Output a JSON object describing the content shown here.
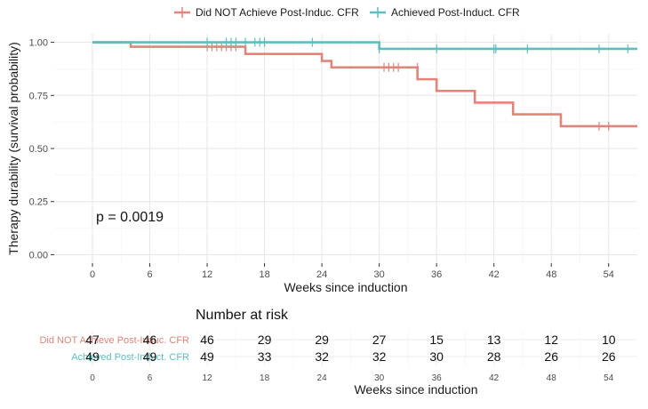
{
  "chart_data": {
    "type": "line",
    "subtype": "kaplan-meier step plot",
    "xlabel": "Weeks since induction",
    "ylabel": "Therapy durability (survival probability)",
    "x_ticks": [
      0,
      6,
      12,
      18,
      24,
      30,
      36,
      42,
      48,
      54
    ],
    "y_ticks": [
      "0.00",
      "0.25",
      "0.50",
      "0.75",
      "1.00"
    ],
    "xlim": [
      -4,
      57
    ],
    "ylim": [
      -0.04,
      1.04
    ],
    "grid": true,
    "legend_position": "top",
    "annotation": "p = 0.0019",
    "series": [
      {
        "name": "Did NOT Achieve Post-Induc. CFR",
        "color": "#E0857A",
        "steps": [
          [
            0,
            1.0
          ],
          [
            4,
            0.979
          ],
          [
            16,
            0.945
          ],
          [
            24,
            0.912
          ],
          [
            25,
            0.882
          ],
          [
            34,
            0.826
          ],
          [
            36,
            0.771
          ],
          [
            40,
            0.716
          ],
          [
            44,
            0.661
          ],
          [
            49,
            0.605
          ],
          [
            57,
            0.605
          ]
        ],
        "censored": [
          [
            12,
            0.979
          ],
          [
            12.5,
            0.979
          ],
          [
            13,
            0.979
          ],
          [
            13.5,
            0.979
          ],
          [
            14,
            0.979
          ],
          [
            14.5,
            0.979
          ],
          [
            15,
            0.979
          ],
          [
            30.5,
            0.882
          ],
          [
            31,
            0.882
          ],
          [
            31.5,
            0.882
          ],
          [
            32,
            0.882
          ],
          [
            34,
            0.882
          ],
          [
            53,
            0.605
          ],
          [
            54,
            0.605
          ]
        ]
      },
      {
        "name": "Achieved Post-Induct. CFR",
        "color": "#5BBFBF",
        "steps": [
          [
            0,
            1.0
          ],
          [
            30,
            1.0
          ],
          [
            30,
            0.969
          ],
          [
            57,
            0.969
          ]
        ],
        "censored": [
          [
            12,
            1.0
          ],
          [
            14,
            1.0
          ],
          [
            14.5,
            1.0
          ],
          [
            15,
            1.0
          ],
          [
            16,
            1.0
          ],
          [
            17,
            1.0
          ],
          [
            17.5,
            1.0
          ],
          [
            18,
            1.0
          ],
          [
            23,
            1.0
          ],
          [
            30,
            0.969
          ],
          [
            36,
            0.969
          ],
          [
            42,
            0.969
          ],
          [
            42.2,
            0.969
          ],
          [
            45.5,
            0.969
          ],
          [
            53,
            0.969
          ],
          [
            56,
            0.969
          ]
        ]
      }
    ],
    "risk_table": {
      "title": "Number at risk",
      "xlabel": "Weeks since induction",
      "times": [
        0,
        6,
        12,
        18,
        24,
        30,
        36,
        42,
        48,
        54
      ],
      "rows": [
        {
          "name": "Did NOT Achieve Post-Induc. CFR",
          "counts": [
            47,
            46,
            46,
            29,
            29,
            27,
            15,
            13,
            12,
            10
          ]
        },
        {
          "name": "Achieved Post-Induct. CFR",
          "counts": [
            49,
            49,
            49,
            33,
            32,
            32,
            30,
            28,
            26,
            26
          ]
        }
      ]
    }
  }
}
